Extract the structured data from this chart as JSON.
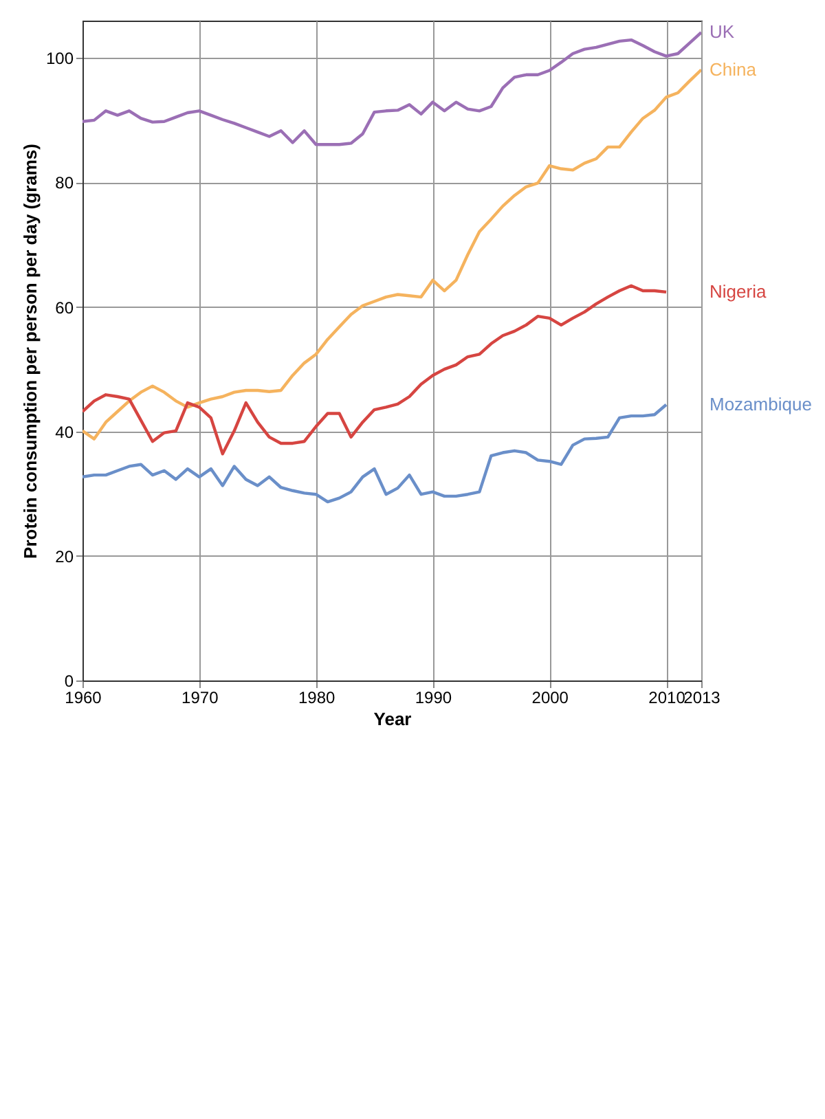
{
  "chart_data": {
    "type": "line",
    "xlabel": "Year",
    "ylabel": "Protein consumption per person per day (grams)",
    "x": [
      1960,
      1961,
      1962,
      1963,
      1964,
      1965,
      1966,
      1967,
      1968,
      1969,
      1970,
      1971,
      1972,
      1973,
      1974,
      1975,
      1976,
      1977,
      1978,
      1979,
      1980,
      1981,
      1982,
      1983,
      1984,
      1985,
      1986,
      1987,
      1988,
      1989,
      1990,
      1991,
      1992,
      1993,
      1994,
      1995,
      1996,
      1997,
      1998,
      1999,
      2000,
      2001,
      2002,
      2003,
      2004,
      2005,
      2006,
      2007,
      2008,
      2009,
      2010,
      2011,
      2012,
      2013
    ],
    "series": [
      {
        "name": "UK",
        "color": "#9b6fb5",
        "values": [
          89.8,
          90,
          91.5,
          90.8,
          91.5,
          90.3,
          89.7,
          89.8,
          90.5,
          91.2,
          91.5,
          90.8,
          90.1,
          89.5,
          88.8,
          88.1,
          87.4,
          88.3,
          86.4,
          88.3,
          86.1,
          86.1,
          86.1,
          86.3,
          87.8,
          91.3,
          91.5,
          91.6,
          92.5,
          91,
          92.9,
          91.5,
          92.9,
          91.8,
          91.5,
          92.2,
          95.2,
          96.9,
          97.3,
          97.3,
          98,
          99.3,
          100.7,
          101.4,
          101.7,
          102.2,
          102.7,
          102.9,
          102,
          101,
          100.3,
          100.7,
          102.4,
          104.1
        ]
      },
      {
        "name": "China",
        "color": "#f5b35e",
        "values": [
          40.1,
          38.8,
          41.5,
          43.2,
          44.9,
          46.3,
          47.3,
          46.3,
          44.9,
          43.9,
          44.6,
          45.2,
          45.6,
          46.3,
          46.6,
          46.6,
          46.4,
          46.6,
          49,
          51,
          52.4,
          54.8,
          56.8,
          58.8,
          60.2,
          60.9,
          61.6,
          62,
          61.8,
          61.6,
          64.3,
          62.6,
          64.3,
          68.4,
          72.1,
          74.1,
          76.2,
          77.9,
          79.3,
          79.9,
          82.7,
          82.2,
          82,
          83.1,
          83.8,
          85.7,
          85.7,
          88.1,
          90.3,
          91.6,
          93.7,
          94.4,
          96.3,
          98.1
        ]
      },
      {
        "name": "Nigeria",
        "color": "#d64541",
        "values": [
          43.2,
          44.9,
          45.9,
          45.6,
          45.2,
          41.8,
          38.4,
          39.8,
          40.1,
          44.6,
          43.9,
          42.2,
          36.4,
          40.1,
          44.6,
          41.5,
          39.1,
          38.1,
          38.1,
          38.4,
          40.8,
          42.9,
          42.9,
          39.1,
          41.5,
          43.5,
          43.9,
          44.4,
          45.6,
          47.6,
          49,
          50,
          50.7,
          52,
          52.4,
          54.1,
          55.4,
          56.1,
          57.1,
          58.5,
          58.2,
          57.1,
          58.2,
          59.2,
          60.5,
          61.6,
          62.6,
          63.4,
          62.6,
          62.6,
          62.4,
          null,
          null,
          null
        ]
      },
      {
        "name": "Mozambique",
        "color": "#6a8fc9",
        "values": [
          32.7,
          33,
          33,
          33.7,
          34.4,
          34.7,
          33,
          33.7,
          32.3,
          34,
          32.7,
          34,
          31.3,
          34.4,
          32.3,
          31.3,
          32.7,
          31,
          30.5,
          30.1,
          29.9,
          28.7,
          29.3,
          30.3,
          32.7,
          34,
          29.9,
          30.9,
          33,
          29.9,
          30.3,
          29.6,
          29.6,
          29.9,
          30.3,
          36.1,
          36.6,
          36.9,
          36.6,
          35.4,
          35.2,
          34.7,
          37.8,
          38.8,
          38.9,
          39.1,
          42.2,
          42.5,
          42.5,
          42.7,
          44.3,
          null,
          null,
          null
        ]
      }
    ],
    "xlim": [
      1960,
      2013
    ],
    "xticks": [
      1960,
      1970,
      1980,
      1990,
      2000,
      2010,
      2013
    ],
    "ylim": [
      0,
      106
    ],
    "yticks": [
      0,
      20,
      40,
      60,
      80,
      100
    ],
    "grid": true,
    "legend": false,
    "marker": "none"
  }
}
